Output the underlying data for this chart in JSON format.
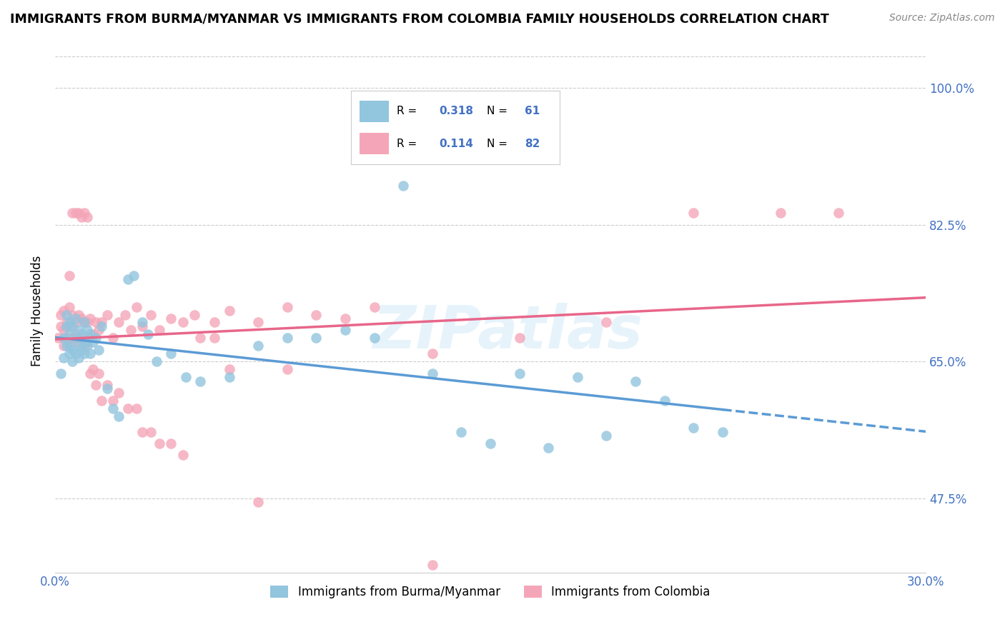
{
  "title": "IMMIGRANTS FROM BURMA/MYANMAR VS IMMIGRANTS FROM COLOMBIA FAMILY HOUSEHOLDS CORRELATION CHART",
  "source": "Source: ZipAtlas.com",
  "ylabel": "Family Households",
  "ytick_labels": [
    "100.0%",
    "82.5%",
    "65.0%",
    "47.5%"
  ],
  "ytick_values": [
    1.0,
    0.825,
    0.65,
    0.475
  ],
  "xmin": 0.0,
  "xmax": 0.3,
  "ymin": 0.38,
  "ymax": 1.05,
  "legend_r_blue": "0.318",
  "legend_n_blue": "61",
  "legend_r_pink": "0.114",
  "legend_n_pink": "82",
  "color_blue": "#92c5de",
  "color_pink": "#f4a6b8",
  "color_blue_line": "#5b9bd5",
  "color_pink_line": "#e8668a",
  "color_blue_text": "#4472c4",
  "color_pink_text": "#e8668a",
  "watermark": "ZIPatlas",
  "blue_scatter_x": [
    0.002,
    0.003,
    0.003,
    0.004,
    0.004,
    0.004,
    0.005,
    0.005,
    0.005,
    0.005,
    0.006,
    0.006,
    0.006,
    0.007,
    0.007,
    0.007,
    0.008,
    0.008,
    0.008,
    0.009,
    0.009,
    0.01,
    0.01,
    0.01,
    0.011,
    0.011,
    0.012,
    0.012,
    0.013,
    0.014,
    0.015,
    0.016,
    0.018,
    0.02,
    0.022,
    0.025,
    0.027,
    0.03,
    0.032,
    0.035,
    0.04,
    0.045,
    0.05,
    0.06,
    0.07,
    0.08,
    0.09,
    0.1,
    0.11,
    0.12,
    0.13,
    0.14,
    0.15,
    0.16,
    0.17,
    0.18,
    0.19,
    0.2,
    0.21,
    0.22,
    0.23
  ],
  "blue_scatter_y": [
    0.635,
    0.655,
    0.68,
    0.67,
    0.695,
    0.71,
    0.66,
    0.67,
    0.685,
    0.7,
    0.65,
    0.665,
    0.695,
    0.66,
    0.68,
    0.705,
    0.655,
    0.67,
    0.69,
    0.665,
    0.685,
    0.66,
    0.675,
    0.7,
    0.67,
    0.69,
    0.66,
    0.685,
    0.675,
    0.68,
    0.665,
    0.695,
    0.615,
    0.59,
    0.58,
    0.755,
    0.76,
    0.7,
    0.685,
    0.65,
    0.66,
    0.63,
    0.625,
    0.63,
    0.67,
    0.68,
    0.68,
    0.69,
    0.68,
    0.875,
    0.635,
    0.56,
    0.545,
    0.635,
    0.54,
    0.63,
    0.555,
    0.625,
    0.6,
    0.565,
    0.56
  ],
  "pink_scatter_x": [
    0.001,
    0.002,
    0.002,
    0.003,
    0.003,
    0.003,
    0.004,
    0.004,
    0.005,
    0.005,
    0.005,
    0.006,
    0.006,
    0.007,
    0.007,
    0.008,
    0.008,
    0.009,
    0.009,
    0.01,
    0.01,
    0.011,
    0.011,
    0.012,
    0.012,
    0.013,
    0.014,
    0.015,
    0.016,
    0.018,
    0.02,
    0.022,
    0.024,
    0.026,
    0.028,
    0.03,
    0.033,
    0.036,
    0.04,
    0.044,
    0.048,
    0.055,
    0.06,
    0.07,
    0.08,
    0.09,
    0.1,
    0.11,
    0.13,
    0.16,
    0.19,
    0.22,
    0.25,
    0.27,
    0.005,
    0.006,
    0.007,
    0.008,
    0.009,
    0.01,
    0.011,
    0.012,
    0.013,
    0.014,
    0.015,
    0.016,
    0.018,
    0.02,
    0.022,
    0.025,
    0.028,
    0.03,
    0.033,
    0.036,
    0.04,
    0.044,
    0.05,
    0.055,
    0.06,
    0.07,
    0.08,
    0.13
  ],
  "pink_scatter_y": [
    0.68,
    0.695,
    0.71,
    0.67,
    0.69,
    0.715,
    0.68,
    0.7,
    0.675,
    0.695,
    0.72,
    0.68,
    0.71,
    0.685,
    0.7,
    0.675,
    0.71,
    0.68,
    0.705,
    0.67,
    0.7,
    0.675,
    0.7,
    0.68,
    0.705,
    0.685,
    0.7,
    0.69,
    0.7,
    0.71,
    0.68,
    0.7,
    0.71,
    0.69,
    0.72,
    0.695,
    0.71,
    0.69,
    0.705,
    0.7,
    0.71,
    0.7,
    0.715,
    0.7,
    0.72,
    0.71,
    0.705,
    0.72,
    0.66,
    0.68,
    0.7,
    0.84,
    0.84,
    0.84,
    0.76,
    0.84,
    0.84,
    0.84,
    0.835,
    0.84,
    0.835,
    0.635,
    0.64,
    0.62,
    0.635,
    0.6,
    0.62,
    0.6,
    0.61,
    0.59,
    0.59,
    0.56,
    0.56,
    0.545,
    0.545,
    0.53,
    0.68,
    0.68,
    0.64,
    0.47,
    0.64,
    0.39
  ]
}
